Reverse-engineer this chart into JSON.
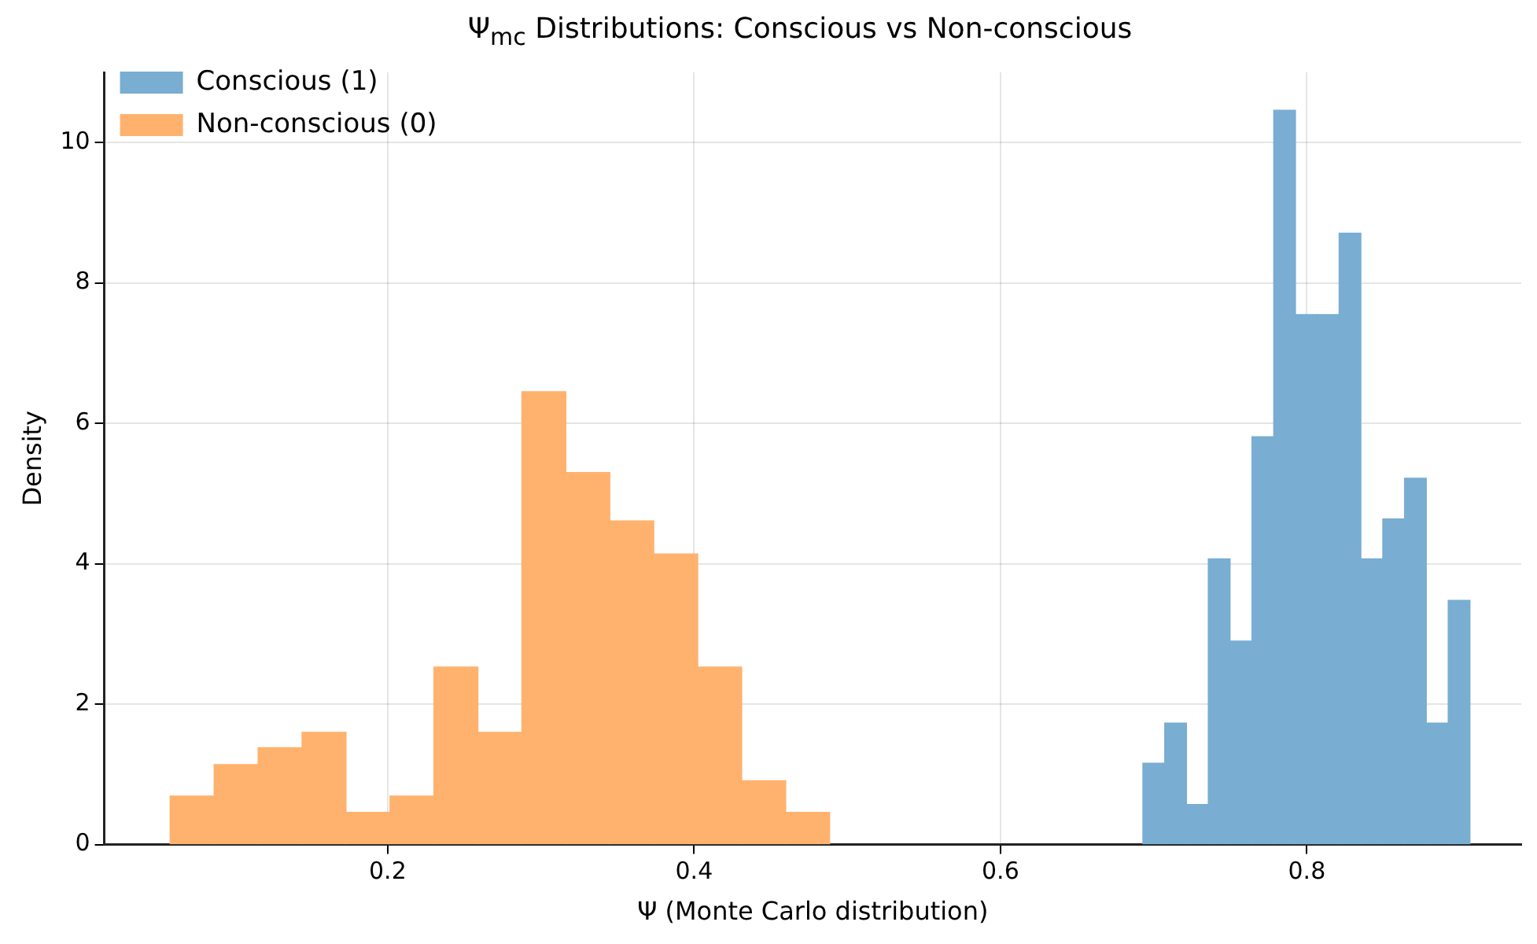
{
  "chart_data": {
    "type": "histogram",
    "title": "Ψ$_{mc}$ Distributions: Conscious vs Non-conscious",
    "xlabel": "Ψ (Monte Carlo distribution)",
    "ylabel": "Density",
    "bins": [
      0.058,
      0.0867,
      0.1154,
      0.1441,
      0.1728,
      0.2015,
      0.2302,
      0.2589,
      0.2876,
      0.3163,
      0.345,
      0.3737,
      0.4024,
      0.4311,
      0.4598,
      0.4885,
      0.693,
      0.7072,
      0.7215,
      0.7357,
      0.7499,
      0.7642,
      0.7784,
      0.7926,
      0.8069,
      0.8211,
      0.8353,
      0.8496,
      0.8638,
      0.878,
      0.8923,
      0.9065
    ],
    "series": [
      {
        "name": "Conscious (1)",
        "color": "#79add2",
        "values": [
          null,
          null,
          null,
          null,
          null,
          null,
          null,
          null,
          null,
          null,
          null,
          null,
          null,
          null,
          null,
          null,
          1.16,
          1.73,
          0.57,
          4.07,
          2.9,
          5.81,
          10.46,
          7.55,
          7.55,
          8.71,
          4.07,
          4.64,
          5.22,
          1.73,
          3.48
        ]
      },
      {
        "name": "Non-conscious (0)",
        "color": "#ffb26e",
        "values": [
          0.69,
          1.14,
          1.38,
          1.6,
          0.46,
          0.69,
          2.53,
          1.6,
          6.45,
          5.3,
          4.61,
          4.14,
          2.53,
          0.91,
          0.46,
          null,
          null,
          null,
          null,
          null,
          null,
          null,
          null,
          null,
          null,
          null,
          null,
          null,
          null,
          null,
          null
        ]
      }
    ],
    "xlim": [
      0.015,
      0.94
    ],
    "xticks": [
      0.2,
      0.4,
      0.6,
      0.8
    ],
    "ylim": [
      0,
      11
    ],
    "yticks": [
      0,
      2,
      4,
      6,
      8,
      10
    ],
    "grid": true,
    "legend": "top left"
  }
}
